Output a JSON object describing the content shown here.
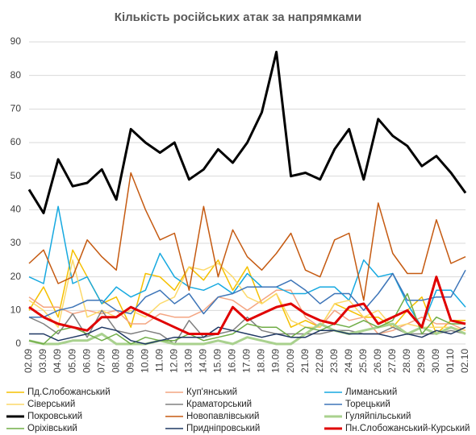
{
  "chart_data": {
    "type": "line",
    "title": "Кількість російських атак за напрямками",
    "categories": [
      "02.09",
      "03.09",
      "04.09",
      "05.09",
      "06.09",
      "07.09",
      "08.09",
      "09.09",
      "10.09",
      "11.09",
      "12.09",
      "13.09",
      "14.09",
      "15.09",
      "16.09",
      "17.09",
      "18.09",
      "19.09",
      "20.09",
      "21.09",
      "22.09",
      "23.09",
      "24.09",
      "25.09",
      "26.09",
      "27.09",
      "28.09",
      "29.09",
      "30.09",
      "01.10",
      "02.10"
    ],
    "ylim": [
      0,
      90
    ],
    "yticks": [
      0,
      10,
      20,
      30,
      40,
      50,
      60,
      70,
      80,
      90
    ],
    "grid": true,
    "series": [
      {
        "name": "Пд.Слобожанський",
        "color": "#f5c000",
        "values": [
          10,
          17,
          8,
          28,
          20,
          12,
          14,
          5,
          21,
          20,
          16,
          23,
          19,
          25,
          16,
          23,
          12,
          15,
          5,
          7,
          5,
          12,
          10,
          8,
          8,
          5,
          10,
          14,
          3,
          7,
          7
        ]
      },
      {
        "name": "Куп'янський",
        "color": "#f4a582",
        "values": [
          14,
          11,
          11,
          9,
          10,
          9,
          10,
          6,
          6,
          9,
          8,
          8,
          10,
          14,
          13,
          10,
          13,
          16,
          16,
          8,
          5,
          10,
          7,
          8,
          3,
          4,
          6,
          8,
          6,
          6,
          4
        ]
      },
      {
        "name": "Лиманський",
        "color": "#17a9e0",
        "values": [
          20,
          18,
          41,
          18,
          20,
          12,
          17,
          14,
          16,
          27,
          20,
          17,
          16,
          18,
          15,
          21,
          17,
          17,
          15,
          15,
          17,
          17,
          13,
          25,
          20,
          21,
          12,
          5,
          16,
          16,
          11
        ]
      },
      {
        "name": "Сіверський",
        "color": "#fcd96a",
        "values": [
          13,
          10,
          5,
          25,
          8,
          10,
          8,
          10,
          8,
          12,
          14,
          23,
          22,
          24,
          20,
          14,
          12,
          15,
          7,
          5,
          5,
          12,
          13,
          8,
          10,
          5,
          6,
          5,
          5,
          5,
          4
        ]
      },
      {
        "name": "Краматорський",
        "color": "#808080",
        "values": [
          8,
          6,
          3,
          9,
          2,
          10,
          4,
          3,
          4,
          3,
          0,
          7,
          2,
          3,
          4,
          8,
          4,
          3,
          3,
          3,
          3,
          4,
          4,
          3,
          3,
          5,
          3,
          3,
          3,
          4,
          3
        ]
      },
      {
        "name": "Торецький",
        "color": "#3e75b8",
        "values": [
          8,
          8,
          10,
          11,
          13,
          13,
          10,
          9,
          14,
          16,
          12,
          15,
          9,
          14,
          15,
          17,
          17,
          17,
          19,
          16,
          12,
          15,
          15,
          10,
          15,
          21,
          13,
          13,
          14,
          14,
          22
        ]
      },
      {
        "name": "Покровський",
        "color": "#000000",
        "width": 3,
        "values": [
          46,
          39,
          55,
          47,
          48,
          52,
          43,
          64,
          60,
          57,
          60,
          49,
          52,
          58,
          54,
          60,
          69,
          87,
          50,
          51,
          49,
          58,
          64,
          49,
          67,
          62,
          59,
          53,
          56,
          51,
          45
        ]
      },
      {
        "name": "Новопавлівський",
        "color": "#c55a11",
        "values": [
          24,
          28,
          18,
          20,
          31,
          26,
          22,
          51,
          40,
          31,
          33,
          16,
          41,
          20,
          34,
          26,
          22,
          27,
          33,
          22,
          20,
          31,
          33,
          13,
          42,
          27,
          21,
          21,
          37,
          24,
          26
        ]
      },
      {
        "name": "Гуляйпільський",
        "color": "#a9d18e",
        "width": 3,
        "values": [
          1,
          0,
          0,
          1,
          1,
          3,
          0,
          0,
          0,
          1,
          0,
          0,
          0,
          1,
          0,
          2,
          1,
          0,
          0,
          3,
          6,
          4,
          3,
          4,
          5,
          6,
          3,
          5,
          3,
          5,
          3
        ]
      },
      {
        "name": "Оріхівський",
        "color": "#70ad47",
        "values": [
          1,
          0,
          4,
          5,
          3,
          1,
          3,
          0,
          2,
          1,
          1,
          3,
          1,
          2,
          3,
          6,
          5,
          5,
          2,
          5,
          4,
          6,
          5,
          7,
          5,
          7,
          15,
          3,
          8,
          6,
          6
        ]
      },
      {
        "name": "Придніпровський",
        "color": "#1f3864",
        "values": [
          3,
          3,
          1,
          2,
          3,
          5,
          4,
          1,
          0,
          1,
          2,
          2,
          2,
          5,
          4,
          3,
          2,
          3,
          2,
          2,
          4,
          4,
          3,
          3,
          3,
          2,
          3,
          2,
          4,
          3,
          5
        ]
      },
      {
        "name": "Пн.Слобожанський-Курський",
        "color": "#e00000",
        "width": 3,
        "values": [
          11,
          8,
          6,
          5,
          4,
          8,
          8,
          11,
          9,
          7,
          5,
          3,
          3,
          3,
          11,
          7,
          9,
          11,
          12,
          9,
          7,
          6,
          11,
          12,
          6,
          8,
          10,
          5,
          20,
          7,
          6
        ]
      }
    ]
  }
}
